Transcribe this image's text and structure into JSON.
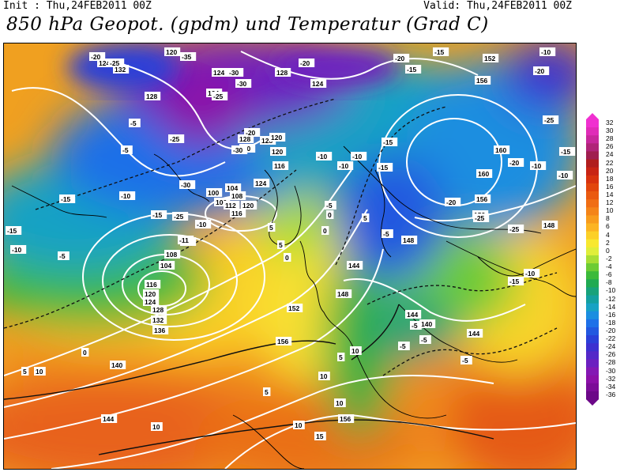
{
  "header": {
    "init": "Init : Thu,24FEB2011 00Z",
    "valid": "Valid: Thu,24FEB2011 00Z",
    "title": "850 hPa Geopot. (gpdm) und Temperatur (Grad C)"
  },
  "colorbar": {
    "ticks": [
      "32",
      "30",
      "28",
      "26",
      "24",
      "22",
      "20",
      "18",
      "16",
      "14",
      "12",
      "10",
      "8",
      "6",
      "4",
      "2",
      "0",
      "-2",
      "-4",
      "-6",
      "-8",
      "-10",
      "-12",
      "-14",
      "-16",
      "-18",
      "-20",
      "-22",
      "-24",
      "-26",
      "-28",
      "-30",
      "-32",
      "-34",
      "-36"
    ],
    "colors": [
      "#f030d0",
      "#e02cb8",
      "#c8289c",
      "#b02478",
      "#a01e50",
      "#b01e1e",
      "#c82414",
      "#d8320e",
      "#e2460c",
      "#ea5a10",
      "#f06e14",
      "#f48418",
      "#f89c1c",
      "#fcb422",
      "#fcd028",
      "#f8e830",
      "#e0ee3a",
      "#a8de34",
      "#6ccc34",
      "#3cba3a",
      "#20aa52",
      "#18a27a",
      "#14a0a0",
      "#18a2c4",
      "#1c8ee0",
      "#1e70e8",
      "#2258e0",
      "#2a40d8",
      "#3c30d0",
      "#5428c8",
      "#6c20c0",
      "#8418b4",
      "#8c10a8",
      "#7c0c98",
      "#6c0888"
    ]
  },
  "geopotential_labels": [
    "124",
    "132",
    "128",
    "120",
    "124",
    "128",
    "124",
    "152",
    "156",
    "160",
    "160",
    "156",
    "152",
    "148",
    "148",
    "144",
    "144",
    "140",
    "144",
    "148",
    "152",
    "156",
    "156",
    "144",
    "140",
    "136",
    "132",
    "128",
    "124",
    "120",
    "116",
    "112",
    "108",
    "104",
    "100",
    "100",
    "104",
    "108",
    "112",
    "116",
    "120",
    "124",
    "128",
    "128",
    "120",
    "116",
    "120",
    "124"
  ],
  "temperature_labels": [
    "-20",
    "-25",
    "-35",
    "-30",
    "-30",
    "-25",
    "-20",
    "-20",
    "-15",
    "-15",
    "-10",
    "-20",
    "-25",
    "-20",
    "-10",
    "-15",
    "-10",
    "-5",
    "-5",
    "-10",
    "-15",
    "-15",
    "-10",
    "-20",
    "-25",
    "-30",
    "-25",
    "-15",
    "-10",
    "-10",
    "-15",
    "-15",
    "-10",
    "-5",
    "0",
    "5",
    "-5",
    "0",
    "5",
    "5",
    "0",
    "-10",
    "-11",
    "-5",
    "0",
    "5",
    "5",
    "10",
    "10",
    "10",
    "15",
    "10",
    "5",
    "10",
    "10",
    "-5",
    "-5",
    "-5",
    "-5",
    "-10",
    "-15",
    "-20",
    "-25",
    "-25",
    "-30",
    "-20"
  ]
}
